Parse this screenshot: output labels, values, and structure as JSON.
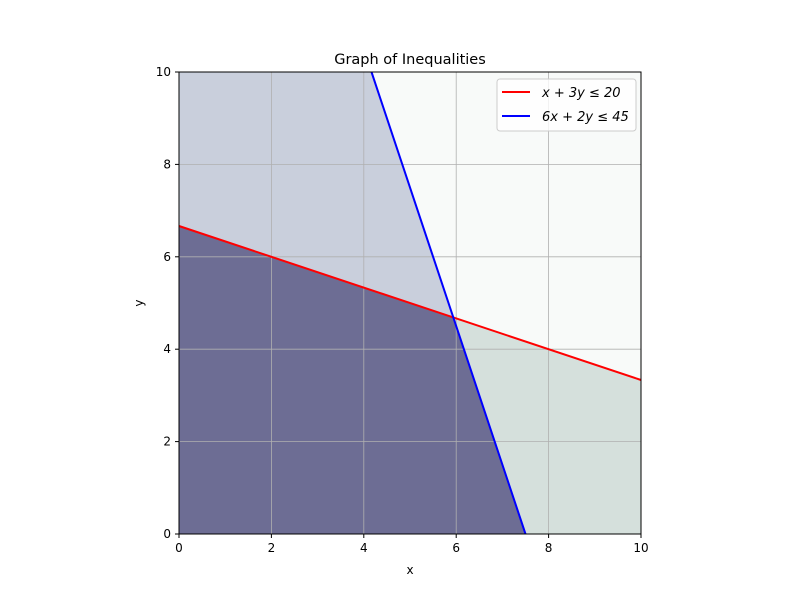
{
  "chart_data": {
    "type": "area",
    "title": "Graph of Inequalities",
    "xlabel": "x",
    "ylabel": "y",
    "xlim": [
      0,
      10
    ],
    "ylim": [
      0,
      10
    ],
    "xticks": [
      0,
      2,
      4,
      6,
      8,
      10
    ],
    "yticks": [
      0,
      2,
      4,
      6,
      8,
      10
    ],
    "grid": true,
    "legend_position": "top-right",
    "series": [
      {
        "name": "x + 3y ≤ 20",
        "a": 1,
        "b": 3,
        "c": 20,
        "color": "#ff0000"
      },
      {
        "name": "6x + 2y ≤ 45",
        "a": 6,
        "b": 2,
        "c": 45,
        "color": "#0000ff"
      }
    ],
    "regions": {
      "both": "#6d6d94",
      "second_only": "#c9cfdc",
      "first_only": "#d5e0dc",
      "neither": "#f8faf9"
    }
  }
}
